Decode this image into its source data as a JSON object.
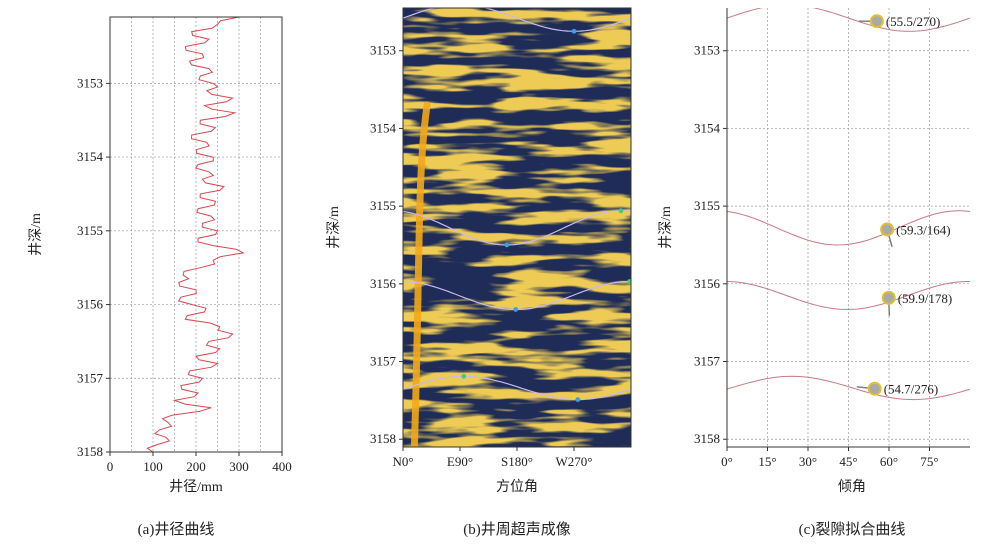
{
  "chart_data": [
    {
      "type": "line",
      "panel": "a",
      "caption": "(a)井径曲线",
      "xlabel": "井径/mm",
      "ylabel": "井深/m",
      "xlim": [
        0,
        400
      ],
      "ylim": [
        3158,
        3152.1
      ],
      "xticks": [
        0,
        100,
        200,
        300,
        400
      ],
      "yticks": [
        3153,
        3154,
        3155,
        3156,
        3157,
        3158
      ],
      "grid": true,
      "color": "#d9484f",
      "series": [
        {
          "depth": [
            3152.1,
            3152.2,
            3152.3,
            3152.4,
            3152.5,
            3152.6,
            3152.7,
            3152.8,
            3152.9,
            3153.0,
            3153.1,
            3153.2,
            3153.3,
            3153.4,
            3153.5,
            3153.6,
            3153.7,
            3153.8,
            3153.9,
            3154.0,
            3154.1,
            3154.2,
            3154.3,
            3154.4,
            3154.5,
            3154.6,
            3154.7,
            3154.8,
            3154.9,
            3155.0,
            3155.1,
            3155.2,
            3155.3,
            3155.4,
            3155.5,
            3155.6,
            3155.7,
            3155.8,
            3155.9,
            3156.0,
            3156.1,
            3156.2,
            3156.3,
            3156.4,
            3156.5,
            3156.6,
            3156.7,
            3156.8,
            3156.9,
            3157.0,
            3157.1,
            3157.2,
            3157.3,
            3157.4,
            3157.5,
            3157.6,
            3157.7,
            3157.8,
            3157.9,
            3158.0
          ],
          "caliper": [
            300,
            250,
            190,
            230,
            175,
            215,
            185,
            230,
            210,
            240,
            225,
            285,
            220,
            290,
            210,
            245,
            190,
            225,
            200,
            240,
            205,
            230,
            215,
            265,
            210,
            245,
            205,
            235,
            215,
            250,
            205,
            240,
            310,
            240,
            210,
            170,
            160,
            200,
            165,
            190,
            220,
            175,
            255,
            285,
            230,
            255,
            200,
            250,
            185,
            215,
            165,
            205,
            150,
            235,
            145,
            135,
            115,
            130,
            110,
            100
          ]
        }
      ]
    },
    {
      "type": "image",
      "panel": "b",
      "caption": "(b)井周超声成像",
      "xlabel": "方位角",
      "ylabel": "井深/m",
      "xlim": [
        0,
        360
      ],
      "ylim": [
        3158.1,
        3152.45
      ],
      "xticklabels": [
        "N0°",
        "E90°",
        "S180°",
        "W270°"
      ],
      "xticks": [
        0,
        90,
        180,
        270
      ],
      "yticks": [
        3153,
        3154,
        3155,
        3156,
        3157,
        3158
      ],
      "background_color": "#1e2c57",
      "texture_color": "#f2a818",
      "sinusoids": [
        {
          "center_depth": 3152.58,
          "amplitude": 0.17,
          "trough_azimuth": 270
        },
        {
          "center_depth": 3155.28,
          "amplitude": 0.22,
          "trough_azimuth": 164
        },
        {
          "center_depth": 3156.15,
          "amplitude": 0.18,
          "trough_azimuth": 178
        },
        {
          "center_depth": 3157.34,
          "amplitude": 0.15,
          "trough_azimuth": 276
        }
      ]
    },
    {
      "type": "line",
      "panel": "c",
      "caption": "(c)裂隙拟合曲线",
      "xlabel": "倾角",
      "ylabel": "井深/m",
      "xlim": [
        0,
        90
      ],
      "ylim": [
        3158.1,
        3152.45
      ],
      "xticklabels": [
        "0°",
        "15°",
        "30°",
        "45°",
        "60°",
        "75°"
      ],
      "xticks": [
        0,
        15,
        30,
        45,
        60,
        75
      ],
      "yticks": [
        3153,
        3154,
        3155,
        3156,
        3157,
        3158
      ],
      "grid": true,
      "fractures": [
        {
          "depth": 3152.62,
          "dip": 55.5,
          "dip_azimuth": 270,
          "label": "(55.5/270)"
        },
        {
          "depth": 3155.3,
          "dip": 59.3,
          "dip_azimuth": 164,
          "label": "(59.3/164)"
        },
        {
          "depth": 3156.18,
          "dip": 59.9,
          "dip_azimuth": 178,
          "label": "(59.9/178)"
        },
        {
          "depth": 3157.35,
          "dip": 54.7,
          "dip_azimuth": 276,
          "label": "(54.7/276)"
        }
      ]
    }
  ]
}
